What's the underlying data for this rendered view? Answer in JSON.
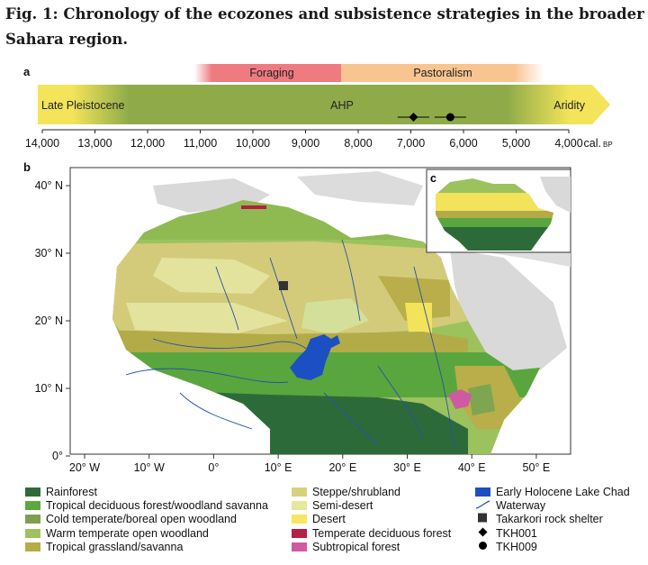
{
  "figure": {
    "title": "Fig. 1: Chronology of the ecozones and subsistence strategies in the broader Sahara region."
  },
  "panel_a": {
    "label": "a",
    "phases": [
      {
        "name": "Foraging",
        "color": "#ef7a80"
      },
      {
        "name": "Pastoralism",
        "color": "#f8c48f"
      }
    ],
    "periods": [
      {
        "name": "Late Pleistocene",
        "color": "#f3e45a"
      },
      {
        "name": "AHP",
        "color": "#8fab49"
      },
      {
        "name": "Aridity",
        "color": "#f3e45a"
      }
    ],
    "markers": [
      {
        "name": "TKH001",
        "shape": "diamond",
        "age": 6950,
        "range": [
          7250,
          6650
        ]
      },
      {
        "name": "TKH009",
        "shape": "circle",
        "age": 6250,
        "range": [
          6550,
          5950
        ]
      }
    ],
    "axis": {
      "ticks": [
        "14,000",
        "13,000",
        "12,000",
        "11,000",
        "10,000",
        "9,000",
        "8,000",
        "7,000",
        "6,000",
        "5,000",
        "4,000"
      ],
      "unit_prefix": "cal.",
      "unit_suffix": "BP"
    }
  },
  "panel_b": {
    "label": "b",
    "lat_ticks": [
      "40° N",
      "30° N",
      "20° N",
      "10° N",
      "0°"
    ],
    "lon_ticks": [
      "20° W",
      "10° W",
      "0°",
      "10° E",
      "20° E",
      "30° E",
      "40° E",
      "50° E"
    ]
  },
  "panel_c": {
    "label": "c"
  },
  "legend": {
    "col1": [
      {
        "label": "Rainforest",
        "color": "#2f6b3a"
      },
      {
        "label": "Tropical deciduous forest/woodland savanna",
        "color": "#5aa83e"
      },
      {
        "label": "Cold temperate/boreal open woodland",
        "color": "#7f9e52"
      },
      {
        "label": "Warm temperate open woodland",
        "color": "#9cc25e"
      },
      {
        "label": "Tropical grassland/savanna",
        "color": "#b4ad4a"
      }
    ],
    "col2": [
      {
        "label": "Steppe/shrubland",
        "color": "#d9d07e"
      },
      {
        "label": "Semi-desert",
        "color": "#e6e89c"
      },
      {
        "label": "Desert",
        "color": "#f7e660"
      },
      {
        "label": "Temperate deciduous forest",
        "color": "#b51f45"
      },
      {
        "label": "Subtropical forest",
        "color": "#d05aa1"
      }
    ],
    "col3": [
      {
        "label": "Early Holocene Lake Chad",
        "type": "swatch",
        "color": "#1d4fc4"
      },
      {
        "label": "Waterway",
        "type": "line",
        "color": "#2a4fa8"
      },
      {
        "label": "Takarkori rock shelter",
        "type": "square",
        "color": "#333333"
      },
      {
        "label": "TKH001",
        "type": "diamond",
        "color": "#000000"
      },
      {
        "label": "TKH009",
        "type": "circle",
        "color": "#000000"
      }
    ]
  }
}
